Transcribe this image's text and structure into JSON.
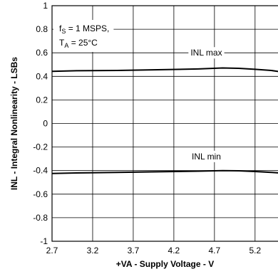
{
  "chart_data": {
    "type": "line",
    "xlabel": "+VA - Supply Voltage - V",
    "ylabel": "INL - Integral Nonlinearity - LSBs",
    "xlim": [
      2.7,
      5.5
    ],
    "ylim": [
      -1,
      1
    ],
    "x_ticks": [
      2.7,
      3.2,
      3.7,
      4.2,
      4.7,
      5.2
    ],
    "x_tick_labels": [
      "2.7",
      "3.2",
      "3.7",
      "4.2",
      "4.7",
      "5.2"
    ],
    "y_ticks": [
      -1,
      -0.8,
      -0.6,
      -0.4,
      -0.2,
      0,
      0.2,
      0.4,
      0.6,
      0.8,
      1
    ],
    "y_tick_labels": [
      "-1",
      "-0.8",
      "-0.6",
      "-0.4",
      "-0.2",
      "0",
      "0.2",
      "0.4",
      "0.6",
      "0.8",
      "1"
    ],
    "grid": true,
    "series": [
      {
        "name": "INL max",
        "x": [
          2.7,
          3.0,
          3.5,
          4.0,
          4.5,
          4.8,
          5.0,
          5.2,
          5.4,
          5.5
        ],
        "y": [
          0.443,
          0.448,
          0.45,
          0.456,
          0.463,
          0.471,
          0.468,
          0.46,
          0.45,
          0.44
        ]
      },
      {
        "name": "INL min",
        "x": [
          2.7,
          3.0,
          3.5,
          4.0,
          4.5,
          4.8,
          5.0,
          5.2,
          5.4,
          5.5
        ],
        "y": [
          -0.425,
          -0.42,
          -0.415,
          -0.41,
          -0.405,
          -0.4,
          -0.402,
          -0.408,
          -0.415,
          -0.42
        ]
      }
    ],
    "annotations": [
      {
        "text": "INL max",
        "x": 4.6,
        "y": 0.6
      },
      {
        "text": "INL min",
        "x": 4.6,
        "y": -0.28
      }
    ],
    "conditions": {
      "line1": {
        "symbol": "f",
        "sub": "S",
        "rest": " = 1 MSPS,"
      },
      "line2": {
        "symbol": "T",
        "sub": "A",
        "rest": " = 25°C"
      }
    }
  }
}
